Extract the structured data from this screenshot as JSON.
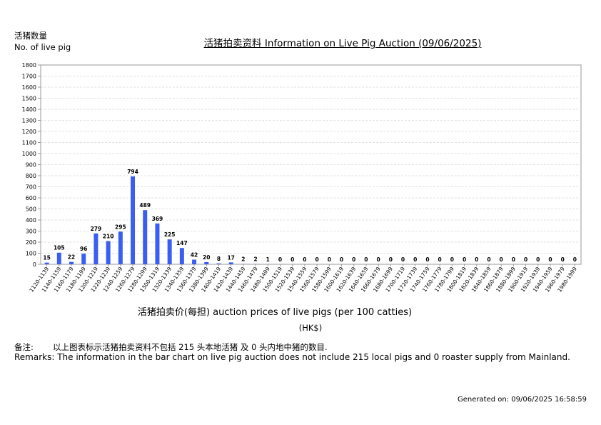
{
  "header": {
    "ylabel_cn": "活猪数量",
    "ylabel_en": "No. of live pig",
    "title": "活猪拍卖资料 Information on Live Pig Auction (09/06/2025)"
  },
  "axis": {
    "xlabel": "活猪拍卖价(每担) auction prices of live pigs (per 100 catties)",
    "unit": "(HK$)"
  },
  "remarks": {
    "cn_label": "备注:",
    "cn_text": "以上图表标示活猪拍卖资料不包括 215 头本地活猪 及 0 头内地中猪的数目.",
    "en_text": "Remarks: The information in the bar chart on live pig auction does not include 215 local pigs and 0 roaster supply from Mainland."
  },
  "footer": {
    "generated": "Generated on: 09/06/2025 16:58:59"
  },
  "colors": {
    "bar": "#3a5ef0",
    "grid": "#d9d9d9",
    "axis": "#999999"
  },
  "chart_data": {
    "type": "bar",
    "title": "活猪拍卖资料 Information on Live Pig Auction (09/06/2025)",
    "xlabel": "活猪拍卖价(每担) auction prices of live pigs (per 100 catties)",
    "ylabel": "活猪数量 No. of live pig",
    "ylim": [
      0,
      1800
    ],
    "yticks": [
      0,
      100,
      200,
      300,
      400,
      500,
      600,
      700,
      800,
      900,
      1000,
      1100,
      1200,
      1300,
      1400,
      1500,
      1600,
      1700,
      1800
    ],
    "grid": true,
    "categories": [
      "1120-1139",
      "1140-1159",
      "1160-1179",
      "1180-1199",
      "1200-1219",
      "1220-1239",
      "1240-1259",
      "1260-1279",
      "1280-1299",
      "1300-1319",
      "1320-1339",
      "1340-1359",
      "1360-1379",
      "1380-1399",
      "1400-1419",
      "1420-1439",
      "1440-1459",
      "1460-1479",
      "1480-1499",
      "1500-1519",
      "1520-1539",
      "1540-1559",
      "1560-1579",
      "1580-1599",
      "1600-1619",
      "1620-1639",
      "1640-1659",
      "1660-1679",
      "1680-1699",
      "1700-1719",
      "1720-1739",
      "1740-1759",
      "1760-1779",
      "1780-1799",
      "1800-1819",
      "1820-1839",
      "1840-1859",
      "1860-1879",
      "1880-1899",
      "1900-1919",
      "1920-1939",
      "1940-1959",
      "1960-1979",
      "1980-1999"
    ],
    "values": [
      15,
      105,
      22,
      96,
      279,
      210,
      295,
      794,
      489,
      369,
      225,
      147,
      42,
      20,
      8,
      17,
      2,
      2,
      1,
      0,
      0,
      0,
      0,
      0,
      0,
      0,
      0,
      0,
      0,
      0,
      0,
      0,
      0,
      0,
      0,
      0,
      0,
      0,
      0,
      0,
      0,
      0,
      0,
      0
    ]
  }
}
